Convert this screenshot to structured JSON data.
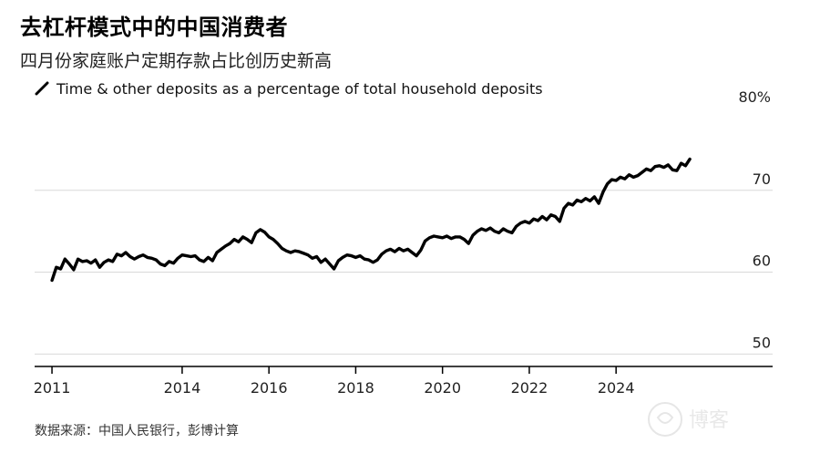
{
  "title": "去杠杆模式中的中国消费者",
  "subtitle": "四月份家庭账户定期存款占比创历史新高",
  "source": "数据来源：中国人民银行，彭博计算",
  "watermark_text": "博客",
  "chart_data": {
    "type": "line",
    "title": "去杠杆模式中的中国消费者",
    "subtitle": "四月份家庭账户定期存款占比创历史新高",
    "series": [
      {
        "name": "Time & other deposits as a percentage of total household deposits",
        "color": "#000000",
        "points": [
          [
            2011.0,
            59.0
          ],
          [
            2011.1,
            60.6
          ],
          [
            2011.2,
            60.4
          ],
          [
            2011.3,
            61.6
          ],
          [
            2011.4,
            61.0
          ],
          [
            2011.5,
            60.3
          ],
          [
            2011.6,
            61.6
          ],
          [
            2011.7,
            61.3
          ],
          [
            2011.8,
            61.4
          ],
          [
            2011.9,
            61.1
          ],
          [
            2012.0,
            61.5
          ],
          [
            2012.1,
            60.6
          ],
          [
            2012.2,
            61.2
          ],
          [
            2012.3,
            61.5
          ],
          [
            2012.4,
            61.3
          ],
          [
            2012.5,
            62.2
          ],
          [
            2012.6,
            62.0
          ],
          [
            2012.7,
            62.4
          ],
          [
            2012.8,
            61.9
          ],
          [
            2012.9,
            61.6
          ],
          [
            2013.0,
            61.9
          ],
          [
            2013.1,
            62.1
          ],
          [
            2013.2,
            61.8
          ],
          [
            2013.3,
            61.7
          ],
          [
            2013.4,
            61.5
          ],
          [
            2013.5,
            61.0
          ],
          [
            2013.6,
            60.8
          ],
          [
            2013.7,
            61.3
          ],
          [
            2013.8,
            61.1
          ],
          [
            2013.9,
            61.7
          ],
          [
            2014.0,
            62.1
          ],
          [
            2014.1,
            62.0
          ],
          [
            2014.2,
            61.9
          ],
          [
            2014.3,
            62.0
          ],
          [
            2014.4,
            61.5
          ],
          [
            2014.5,
            61.3
          ],
          [
            2014.6,
            61.8
          ],
          [
            2014.7,
            61.4
          ],
          [
            2014.8,
            62.4
          ],
          [
            2014.9,
            62.8
          ],
          [
            2015.0,
            63.2
          ],
          [
            2015.1,
            63.5
          ],
          [
            2015.2,
            64.0
          ],
          [
            2015.3,
            63.7
          ],
          [
            2015.4,
            64.3
          ],
          [
            2015.5,
            64.0
          ],
          [
            2015.6,
            63.6
          ],
          [
            2015.7,
            64.8
          ],
          [
            2015.8,
            65.2
          ],
          [
            2015.9,
            64.9
          ],
          [
            2016.0,
            64.3
          ],
          [
            2016.1,
            64.0
          ],
          [
            2016.2,
            63.5
          ],
          [
            2016.3,
            62.9
          ],
          [
            2016.4,
            62.6
          ],
          [
            2016.5,
            62.4
          ],
          [
            2016.6,
            62.6
          ],
          [
            2016.7,
            62.5
          ],
          [
            2016.8,
            62.3
          ],
          [
            2016.9,
            62.1
          ],
          [
            2017.0,
            61.7
          ],
          [
            2017.1,
            61.9
          ],
          [
            2017.2,
            61.2
          ],
          [
            2017.3,
            61.6
          ],
          [
            2017.4,
            61.0
          ],
          [
            2017.5,
            60.4
          ],
          [
            2017.6,
            61.4
          ],
          [
            2017.7,
            61.8
          ],
          [
            2017.8,
            62.1
          ],
          [
            2017.9,
            62.0
          ],
          [
            2018.0,
            61.8
          ],
          [
            2018.1,
            62.0
          ],
          [
            2018.2,
            61.6
          ],
          [
            2018.3,
            61.5
          ],
          [
            2018.4,
            61.2
          ],
          [
            2018.5,
            61.5
          ],
          [
            2018.6,
            62.2
          ],
          [
            2018.7,
            62.6
          ],
          [
            2018.8,
            62.8
          ],
          [
            2018.9,
            62.5
          ],
          [
            2019.0,
            62.9
          ],
          [
            2019.1,
            62.6
          ],
          [
            2019.2,
            62.8
          ],
          [
            2019.3,
            62.4
          ],
          [
            2019.4,
            62.0
          ],
          [
            2019.5,
            62.7
          ],
          [
            2019.6,
            63.8
          ],
          [
            2019.7,
            64.2
          ],
          [
            2019.8,
            64.4
          ],
          [
            2019.9,
            64.3
          ],
          [
            2020.0,
            64.2
          ],
          [
            2020.1,
            64.4
          ],
          [
            2020.2,
            64.1
          ],
          [
            2020.3,
            64.3
          ],
          [
            2020.4,
            64.3
          ],
          [
            2020.5,
            64.0
          ],
          [
            2020.6,
            63.5
          ],
          [
            2020.7,
            64.5
          ],
          [
            2020.8,
            65.0
          ],
          [
            2020.9,
            65.3
          ],
          [
            2021.0,
            65.1
          ],
          [
            2021.1,
            65.4
          ],
          [
            2021.2,
            65.0
          ],
          [
            2021.3,
            64.8
          ],
          [
            2021.4,
            65.3
          ],
          [
            2021.5,
            65.0
          ],
          [
            2021.6,
            64.8
          ],
          [
            2021.7,
            65.6
          ],
          [
            2021.8,
            66.0
          ],
          [
            2021.9,
            66.2
          ],
          [
            2022.0,
            66.0
          ],
          [
            2022.1,
            66.5
          ],
          [
            2022.2,
            66.3
          ],
          [
            2022.3,
            66.8
          ],
          [
            2022.4,
            66.4
          ],
          [
            2022.5,
            67.0
          ],
          [
            2022.6,
            66.8
          ],
          [
            2022.7,
            66.2
          ],
          [
            2022.8,
            67.8
          ],
          [
            2022.9,
            68.4
          ],
          [
            2023.0,
            68.2
          ],
          [
            2023.1,
            68.8
          ],
          [
            2023.2,
            68.6
          ],
          [
            2023.3,
            69.0
          ],
          [
            2023.4,
            68.7
          ],
          [
            2023.5,
            69.2
          ],
          [
            2023.6,
            68.4
          ],
          [
            2023.7,
            69.8
          ],
          [
            2023.8,
            70.8
          ],
          [
            2023.9,
            71.3
          ],
          [
            2024.0,
            71.2
          ],
          [
            2024.1,
            71.6
          ],
          [
            2024.2,
            71.4
          ],
          [
            2024.3,
            71.9
          ],
          [
            2024.4,
            71.6
          ],
          [
            2024.5,
            71.8
          ],
          [
            2024.6,
            72.2
          ],
          [
            2024.7,
            72.6
          ],
          [
            2024.8,
            72.4
          ],
          [
            2024.9,
            72.9
          ],
          [
            2025.0,
            73.0
          ],
          [
            2025.1,
            72.8
          ],
          [
            2025.2,
            73.1
          ],
          [
            2025.3,
            72.5
          ],
          [
            2025.4,
            72.4
          ],
          [
            2025.5,
            73.3
          ],
          [
            2025.6,
            73.0
          ],
          [
            2025.7,
            73.8
          ]
        ]
      }
    ],
    "xticks": [
      2011,
      2014,
      2016,
      2018,
      2020,
      2022,
      2024
    ],
    "xlim": [
      2010.6,
      2026.6
    ],
    "yticks": [
      50,
      60,
      70,
      80
    ],
    "ytick_labels": [
      "50",
      "60",
      "70",
      "80%"
    ],
    "ylim": [
      48.7,
      81.0
    ],
    "grid": "horizontal",
    "legend_position": "top-left"
  }
}
